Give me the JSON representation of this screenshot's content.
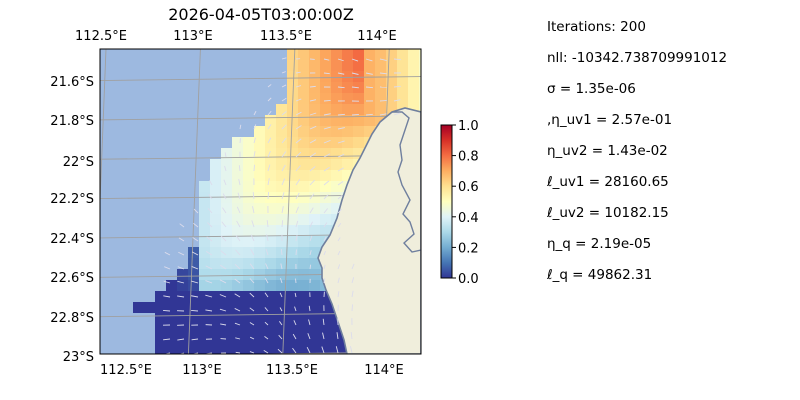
{
  "title": "2026-04-05T03:00:00Z",
  "chart_data": {
    "type": "heatmap",
    "title": "2026-04-05T03:00:00Z",
    "projection": "map (lat/lon gridlines)",
    "xlim": [
      112.5,
      114.2
    ],
    "ylim": [
      -23.0,
      -21.45
    ],
    "x_ticks": [
      "112.5°E",
      "113°E",
      "113.5°E",
      "114°E"
    ],
    "y_ticks": [
      "21.6°S",
      "21.8°S",
      "22°S",
      "22.2°S",
      "22.4°S",
      "22.6°S",
      "22.8°S",
      "23°S"
    ],
    "grid": true,
    "colorbar": {
      "range": [
        0.0,
        1.0
      ],
      "ticks": [
        "0.0",
        "0.2",
        "0.4",
        "0.6",
        "0.8",
        "1.0"
      ],
      "colormap": "RdYlBu_r"
    },
    "field_description_colors": {
      "ocean": "#9db9e0",
      "land": "#f0eedc",
      "coast": "#6f7f9e",
      "grid": "#a0a0a0",
      "quiver": "#d8d8e8"
    },
    "overlay": "vector arrows (current velocity quiver)"
  },
  "stats": [
    "Iterations: 200",
    "nll: -10342.738709991012",
    "σ = 1.35e-06",
    ",η_uv1 = 2.57e-01",
    "η_uv2 = 1.43e-02",
    "ℓ_uv1 = 28160.65",
    "ℓ_uv2 = 10182.15",
    "η_q = 2.19e-05",
    "ℓ_q = 49862.31"
  ]
}
